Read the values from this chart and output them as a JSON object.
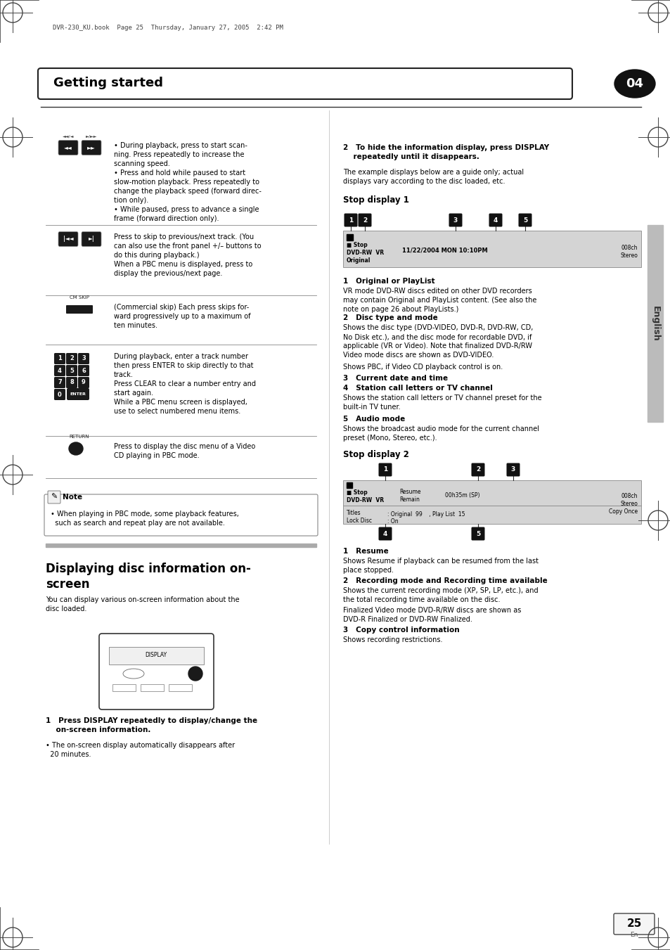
{
  "page_title": "Getting started",
  "chapter_num": "04",
  "header_text": "DVR-230_KU.book  Page 25  Thursday, January 27, 2005  2:42 PM",
  "sidebar_text": "English",
  "page_num": "25",
  "page_num_sub": "En",
  "bg_color": "#ffffff"
}
